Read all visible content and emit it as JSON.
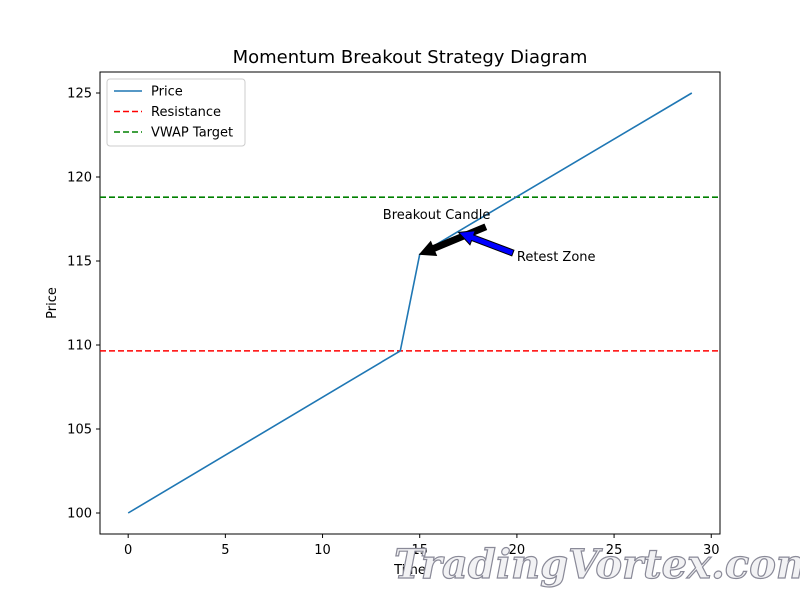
{
  "chart_data": {
    "type": "line",
    "title": "Momentum Breakout Strategy Diagram",
    "xlabel": "Time",
    "ylabel": "Price",
    "xlim": [
      -1.45,
      30.45
    ],
    "ylim": [
      98.75,
      126.25
    ],
    "xticks": [
      0,
      5,
      10,
      15,
      20,
      25,
      30
    ],
    "yticks": [
      100,
      105,
      110,
      115,
      120,
      125
    ],
    "series": [
      {
        "name": "Price",
        "color": "#1f77b4",
        "style": "solid",
        "x": [
          0,
          14,
          15,
          29
        ],
        "y": [
          100,
          109.65,
          115.4,
          125
        ]
      }
    ],
    "hlines": [
      {
        "name": "Resistance",
        "y": 109.65,
        "color": "#ff0000",
        "style": "dashed"
      },
      {
        "name": "VWAP Target",
        "y": 118.8,
        "color": "#008000",
        "style": "dashed"
      }
    ],
    "annotations": [
      {
        "text": "Breakout Candle",
        "text_x": 13.1,
        "text_y": 117.5,
        "point_x": 15,
        "point_y": 115.4,
        "arrow_color": "#000000"
      },
      {
        "text": "Retest Zone",
        "text_x": 20,
        "text_y": 115,
        "point_x": 17,
        "point_y": 116.7,
        "arrow_color": "#0000ff"
      }
    ],
    "legend": {
      "placement": "top-left",
      "entries": [
        "Price",
        "Resistance",
        "VWAP Target"
      ]
    },
    "grid": false
  },
  "watermark": {
    "text": "TradingVortex.com"
  }
}
